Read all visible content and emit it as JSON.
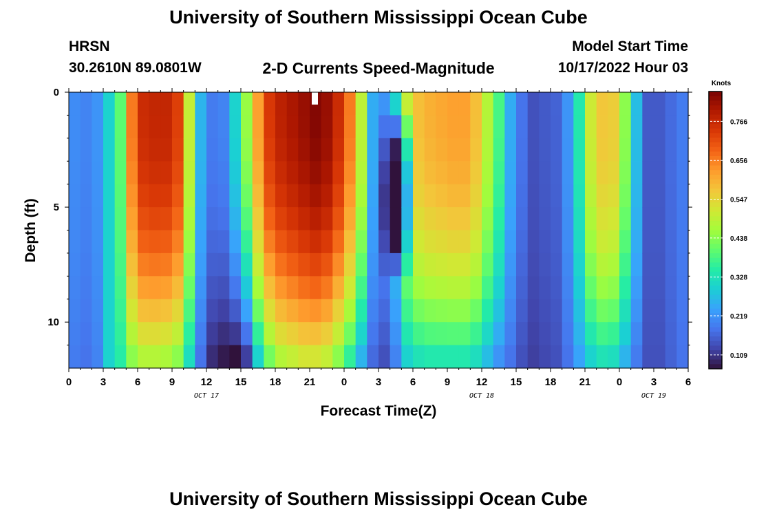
{
  "page": {
    "title_top": "University of Southern Mississippi Ocean Cube",
    "title_bottom": "University of Southern Mississippi Ocean Cube",
    "station_id": "HRSN",
    "coords": "30.2610N  89.0801W",
    "chart_title": "2-D Currents Speed-Magnitude",
    "model_start_label": "Model Start Time",
    "model_start_value": "10/17/2022 Hour 03"
  },
  "colors": {
    "scale": [
      "#30123b",
      "#4145ab",
      "#4675ed",
      "#39a2fc",
      "#1bcfd4",
      "#24eca6",
      "#61fc6c",
      "#a4fc3b",
      "#d1e834",
      "#f3c63a",
      "#fe9b2d",
      "#f36315",
      "#d93806",
      "#b11901",
      "#7a0403"
    ]
  },
  "chart_data": {
    "type": "heatmap",
    "xlabel": "Forecast Time(Z)",
    "ylabel": "Depth (ft)",
    "colorbar_label": "Knots",
    "x_tick_labels": [
      "0",
      "3",
      "6",
      "9",
      "12",
      "15",
      "18",
      "21",
      "0",
      "3",
      "6",
      "9",
      "12",
      "15",
      "18",
      "21",
      "0",
      "3",
      "6"
    ],
    "date_labels": [
      {
        "label": "OCT 17",
        "hour": 12
      },
      {
        "label": "OCT 18",
        "hour": 36
      },
      {
        "label": "OCT 19",
        "hour": 51
      }
    ],
    "y_tick_labels": [
      "0",
      "5",
      "10"
    ],
    "y_tick_values": [
      0,
      5,
      10
    ],
    "ylim": [
      0,
      12
    ],
    "xlim": [
      0,
      54
    ],
    "colorbar_ticks": [
      "0.766",
      "0.656",
      "0.547",
      "0.438",
      "0.328",
      "0.219",
      "0.109"
    ],
    "colorbar_tick_values": [
      0.766,
      0.656,
      0.547,
      0.438,
      0.328,
      0.219,
      0.109
    ],
    "colorbar_range": [
      0.07,
      0.85
    ],
    "time_hours": [
      0,
      1,
      2,
      3,
      4,
      5,
      6,
      7,
      8,
      9,
      10,
      11,
      12,
      13,
      14,
      15,
      16,
      17,
      18,
      19,
      20,
      21,
      22,
      23,
      24,
      25,
      26,
      27,
      28,
      29,
      30,
      31,
      32,
      33,
      34,
      35,
      36,
      37,
      38,
      39,
      40,
      41,
      42,
      43,
      44,
      45,
      46,
      47,
      48,
      49,
      50,
      51,
      52,
      53
    ],
    "depth_rows_ft": [
      0.5,
      1.5,
      2.5,
      3.5,
      4.5,
      5.5,
      6.5,
      7.5,
      8.5,
      9.5,
      10.5,
      11.5
    ],
    "surface_profile": [
      0.21,
      0.2,
      0.22,
      0.3,
      0.4,
      0.66,
      0.76,
      0.77,
      0.77,
      0.73,
      0.5,
      0.26,
      0.19,
      0.2,
      0.3,
      0.45,
      0.62,
      0.74,
      0.78,
      0.8,
      0.82,
      0.84,
      0.82,
      0.76,
      0.66,
      0.49,
      0.25,
      0.22,
      0.3,
      0.5,
      0.58,
      0.6,
      0.61,
      0.62,
      0.62,
      0.58,
      0.48,
      0.38,
      0.25,
      0.18,
      0.14,
      0.15,
      0.16,
      0.22,
      0.34,
      0.51,
      0.57,
      0.56,
      0.44,
      0.27,
      0.15,
      0.15,
      0.17,
      0.19
    ],
    "bottom_profile": [
      0.19,
      0.18,
      0.2,
      0.3,
      0.35,
      0.44,
      0.48,
      0.48,
      0.47,
      0.44,
      0.32,
      0.18,
      0.1,
      0.08,
      0.07,
      0.12,
      0.3,
      0.42,
      0.48,
      0.5,
      0.52,
      0.52,
      0.5,
      0.44,
      0.36,
      0.26,
      0.17,
      0.14,
      0.2,
      0.3,
      0.33,
      0.34,
      0.34,
      0.34,
      0.34,
      0.32,
      0.27,
      0.22,
      0.18,
      0.14,
      0.12,
      0.13,
      0.14,
      0.18,
      0.24,
      0.3,
      0.33,
      0.32,
      0.26,
      0.19,
      0.14,
      0.14,
      0.16,
      0.18
    ],
    "dip_profile": [
      0,
      0,
      0,
      0,
      0,
      0,
      0,
      0,
      0,
      0,
      0,
      0,
      0,
      0,
      0,
      0,
      0,
      0,
      0,
      0,
      0,
      0,
      0,
      0,
      0,
      0,
      0,
      0.1,
      0.3,
      0.22,
      0,
      0,
      0,
      0,
      0,
      0,
      0,
      0,
      0,
      0,
      0,
      0,
      0,
      0,
      0,
      0,
      0,
      0,
      0,
      0,
      0,
      0,
      0,
      0
    ]
  }
}
